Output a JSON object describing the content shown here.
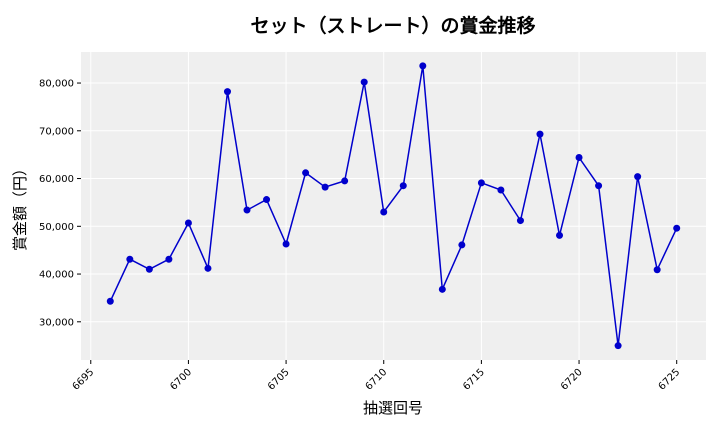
{
  "chart_data": {
    "type": "line",
    "title": "セット（ストレート）の賞金推移",
    "xlabel": "抽選回号",
    "ylabel": "賞金額（円）",
    "x": [
      6696,
      6697,
      6698,
      6699,
      6700,
      6701,
      6702,
      6703,
      6704,
      6705,
      6706,
      6707,
      6708,
      6709,
      6710,
      6711,
      6712,
      6713,
      6714,
      6715,
      6716,
      6717,
      6718,
      6719,
      6720,
      6721,
      6722,
      6723,
      6724,
      6725
    ],
    "series": [
      {
        "values": [
          34300,
          43100,
          41000,
          43100,
          50700,
          41200,
          78200,
          53400,
          55600,
          46300,
          61200,
          58200,
          59500,
          80200,
          53000,
          58500,
          83600,
          36800,
          46100,
          59100,
          57600,
          51200,
          69300,
          48100,
          64400,
          58500,
          25000,
          60400,
          40900,
          49600
        ],
        "color": "#0000cc"
      }
    ],
    "xlim": [
      6694.5,
      6726.5
    ],
    "ylim": [
      22000,
      86500
    ],
    "xticks": [
      6695,
      6700,
      6705,
      6710,
      6715,
      6720,
      6725
    ],
    "yticks": [
      30000,
      40000,
      50000,
      60000,
      70000,
      80000
    ],
    "ytick_labels": [
      "30,000",
      "40,000",
      "50,000",
      "60,000",
      "70,000",
      "80,000"
    ],
    "grid": true,
    "background": "#efefef"
  }
}
